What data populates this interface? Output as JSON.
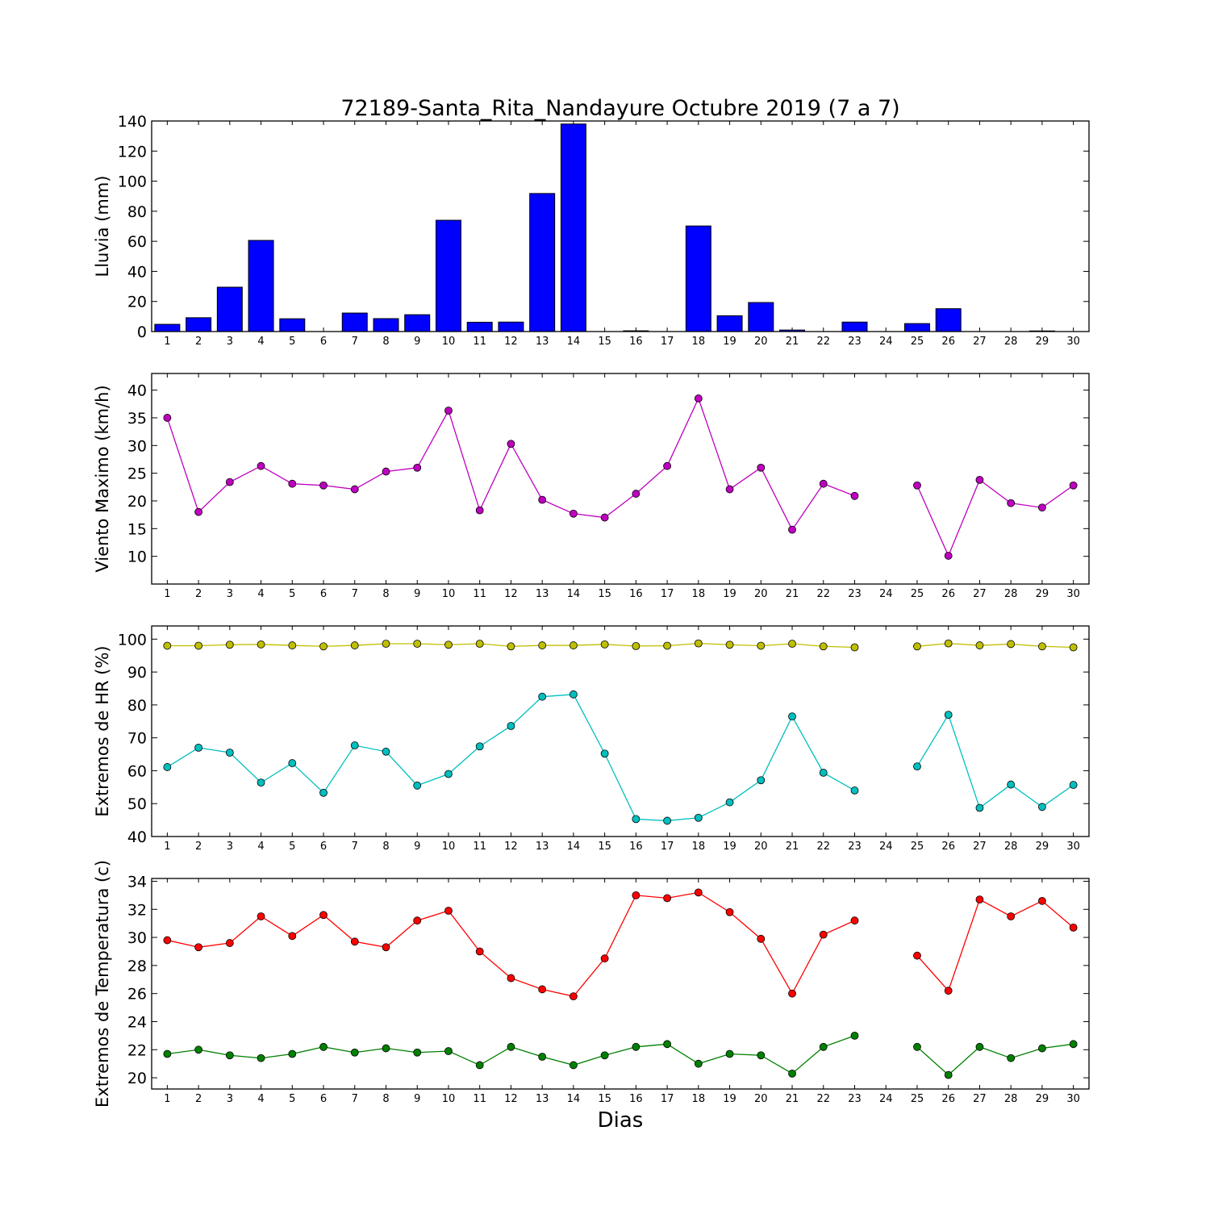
{
  "title": "72189-Santa_Rita_Nandayure Octubre 2019  (7 a 7)",
  "xlabel": "Dias",
  "chart_data": [
    {
      "type": "bar",
      "ylabel": "Lluvia (mm)",
      "ylim": [
        0,
        140
      ],
      "yticks": [
        0,
        20,
        40,
        60,
        80,
        100,
        120,
        140
      ],
      "x": [
        1,
        2,
        3,
        4,
        5,
        6,
        7,
        8,
        9,
        10,
        11,
        12,
        13,
        14,
        15,
        16,
        17,
        18,
        19,
        20,
        21,
        22,
        23,
        24,
        25,
        26,
        27,
        28,
        29,
        30
      ],
      "series": [
        {
          "color": "#0000ff",
          "values": [
            4.8,
            9.2,
            29.5,
            60.6,
            8.5,
            0,
            12.3,
            8.6,
            11.2,
            74.0,
            6.2,
            6.3,
            91.8,
            138.0,
            0,
            0.5,
            0,
            70.2,
            10.5,
            19.3,
            1.0,
            0,
            6.3,
            0,
            5.3,
            15.2,
            0,
            0,
            0.4,
            0
          ]
        }
      ]
    },
    {
      "type": "line",
      "ylabel": "Viento Maximo (km/h)",
      "ylim": [
        5,
        43
      ],
      "yticks": [
        10,
        15,
        20,
        25,
        30,
        35,
        40
      ],
      "x": [
        1,
        2,
        3,
        4,
        5,
        6,
        7,
        8,
        9,
        10,
        11,
        12,
        13,
        14,
        15,
        16,
        17,
        18,
        19,
        20,
        21,
        22,
        23,
        24,
        25,
        26,
        27,
        28,
        29,
        30
      ],
      "series": [
        {
          "color": "#bf00bf",
          "values": [
            35.0,
            18.0,
            23.4,
            26.3,
            23.1,
            22.8,
            22.1,
            25.3,
            26.0,
            36.3,
            18.3,
            30.3,
            20.2,
            17.7,
            17.0,
            21.3,
            26.3,
            38.5,
            22.1,
            26.0,
            14.8,
            23.1,
            20.9,
            null,
            22.8,
            10.1,
            23.8,
            19.6,
            18.8,
            22.8
          ]
        }
      ]
    },
    {
      "type": "line",
      "ylabel": "Extremos de HR (%)",
      "ylim": [
        40,
        104
      ],
      "yticks": [
        40,
        50,
        60,
        70,
        80,
        90,
        100
      ],
      "x": [
        1,
        2,
        3,
        4,
        5,
        6,
        7,
        8,
        9,
        10,
        11,
        12,
        13,
        14,
        15,
        16,
        17,
        18,
        19,
        20,
        21,
        22,
        23,
        24,
        25,
        26,
        27,
        28,
        29,
        30
      ],
      "series": [
        {
          "color": "#bfbf00",
          "values": [
            98.0,
            98.0,
            98.3,
            98.4,
            98.1,
            97.8,
            98.1,
            98.6,
            98.6,
            98.3,
            98.6,
            97.8,
            98.1,
            98.1,
            98.4,
            97.9,
            98.0,
            98.7,
            98.3,
            98.0,
            98.6,
            97.8,
            97.5,
            null,
            97.8,
            98.7,
            98.1,
            98.5,
            97.8,
            97.5
          ]
        },
        {
          "color": "#00bfbf",
          "values": [
            61.1,
            67.0,
            65.5,
            56.4,
            62.3,
            53.3,
            67.7,
            65.8,
            55.5,
            59.0,
            67.4,
            73.6,
            82.5,
            83.2,
            65.2,
            45.3,
            44.8,
            45.7,
            50.4,
            57.1,
            76.5,
            59.4,
            54.0,
            null,
            61.3,
            77.0,
            48.7,
            55.8,
            49.0,
            55.7
          ]
        }
      ]
    },
    {
      "type": "line",
      "ylabel": "Extremos de Temperatura (c)",
      "ylim": [
        19.2,
        34.2
      ],
      "yticks": [
        20,
        22,
        24,
        26,
        28,
        30,
        32,
        34
      ],
      "x": [
        1,
        2,
        3,
        4,
        5,
        6,
        7,
        8,
        9,
        10,
        11,
        12,
        13,
        14,
        15,
        16,
        17,
        18,
        19,
        20,
        21,
        22,
        23,
        24,
        25,
        26,
        27,
        28,
        29,
        30
      ],
      "series": [
        {
          "color": "#ff0000",
          "values": [
            29.8,
            29.3,
            29.6,
            31.5,
            30.1,
            31.6,
            29.7,
            29.3,
            31.2,
            31.9,
            29.0,
            27.1,
            26.3,
            25.8,
            28.5,
            33.0,
            32.8,
            33.2,
            31.8,
            29.9,
            26.0,
            30.2,
            31.2,
            null,
            28.7,
            26.2,
            32.7,
            31.5,
            32.6,
            30.7
          ]
        },
        {
          "color": "#008000",
          "values": [
            21.7,
            22.0,
            21.6,
            21.4,
            21.7,
            22.2,
            21.8,
            22.1,
            21.8,
            21.9,
            20.9,
            22.2,
            21.5,
            20.9,
            21.6,
            22.2,
            22.4,
            21.0,
            21.7,
            21.6,
            20.3,
            22.2,
            23.0,
            null,
            22.2,
            20.2,
            22.2,
            21.4,
            22.1,
            22.4
          ]
        }
      ]
    }
  ]
}
